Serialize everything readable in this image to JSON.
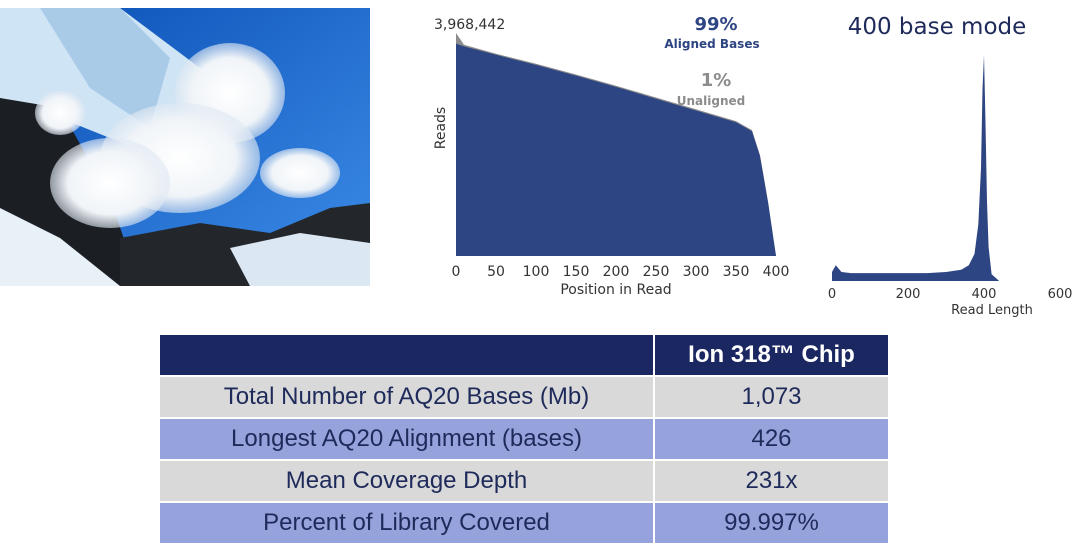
{
  "coverage_plot": {
    "max_label": "3,968,442",
    "aligned_pct": "99%",
    "aligned_label": "Aligned Bases",
    "unaligned_pct": "1%",
    "unaligned_label": "Unaligned",
    "colors": {
      "aligned": "#2e4583",
      "unaligned": "#8c8c8c"
    }
  },
  "length_plot": {
    "title": "400 base mode",
    "color": "#2e4583"
  },
  "table": {
    "header": [
      "",
      "Ion 318™ Chip"
    ],
    "rows": [
      {
        "label": "Total Number of AQ20  Bases (Mb)",
        "value": "1,073"
      },
      {
        "label": "Longest AQ20 Alignment (bases)",
        "value": "426"
      },
      {
        "label": "Mean Coverage Depth",
        "value": "231x"
      },
      {
        "label": "Percent of Library Covered",
        "value": "99.997%"
      }
    ]
  },
  "chart_data": [
    {
      "type": "area",
      "title": "",
      "xlabel": "Position in Read",
      "ylabel": "Reads",
      "xlim": [
        0,
        400
      ],
      "ylim": [
        0,
        3968442
      ],
      "xticks": [
        0,
        50,
        100,
        150,
        200,
        250,
        300,
        350,
        400
      ],
      "x": [
        0,
        10,
        50,
        100,
        150,
        200,
        250,
        300,
        350,
        370,
        380,
        390,
        400
      ],
      "series": [
        {
          "name": "Aligned Bases",
          "values": [
            3780000,
            3730000,
            3580000,
            3400000,
            3210000,
            3010000,
            2800000,
            2590000,
            2380000,
            2220000,
            1780000,
            960000,
            0
          ]
        },
        {
          "name": "Unaligned",
          "values": [
            3968442,
            3760000,
            3600000,
            3420000,
            3230000,
            3030000,
            2820000,
            2610000,
            2400000,
            2240000,
            1790000,
            970000,
            0
          ]
        }
      ]
    },
    {
      "type": "area",
      "title": "400 base mode",
      "xlabel": "Read Length",
      "ylabel": "",
      "xlim": [
        0,
        600
      ],
      "ylim": [
        0,
        1
      ],
      "xticks": [
        0,
        200,
        400,
        600
      ],
      "x": [
        0,
        10,
        25,
        50,
        100,
        150,
        200,
        250,
        300,
        340,
        360,
        375,
        385,
        392,
        396,
        400,
        404,
        408,
        412,
        420,
        440
      ],
      "series": [
        {
          "name": "",
          "values": [
            0.04,
            0.07,
            0.04,
            0.035,
            0.035,
            0.035,
            0.035,
            0.035,
            0.04,
            0.05,
            0.07,
            0.12,
            0.25,
            0.5,
            0.85,
            1.0,
            0.7,
            0.35,
            0.15,
            0.03,
            0
          ]
        }
      ]
    }
  ]
}
